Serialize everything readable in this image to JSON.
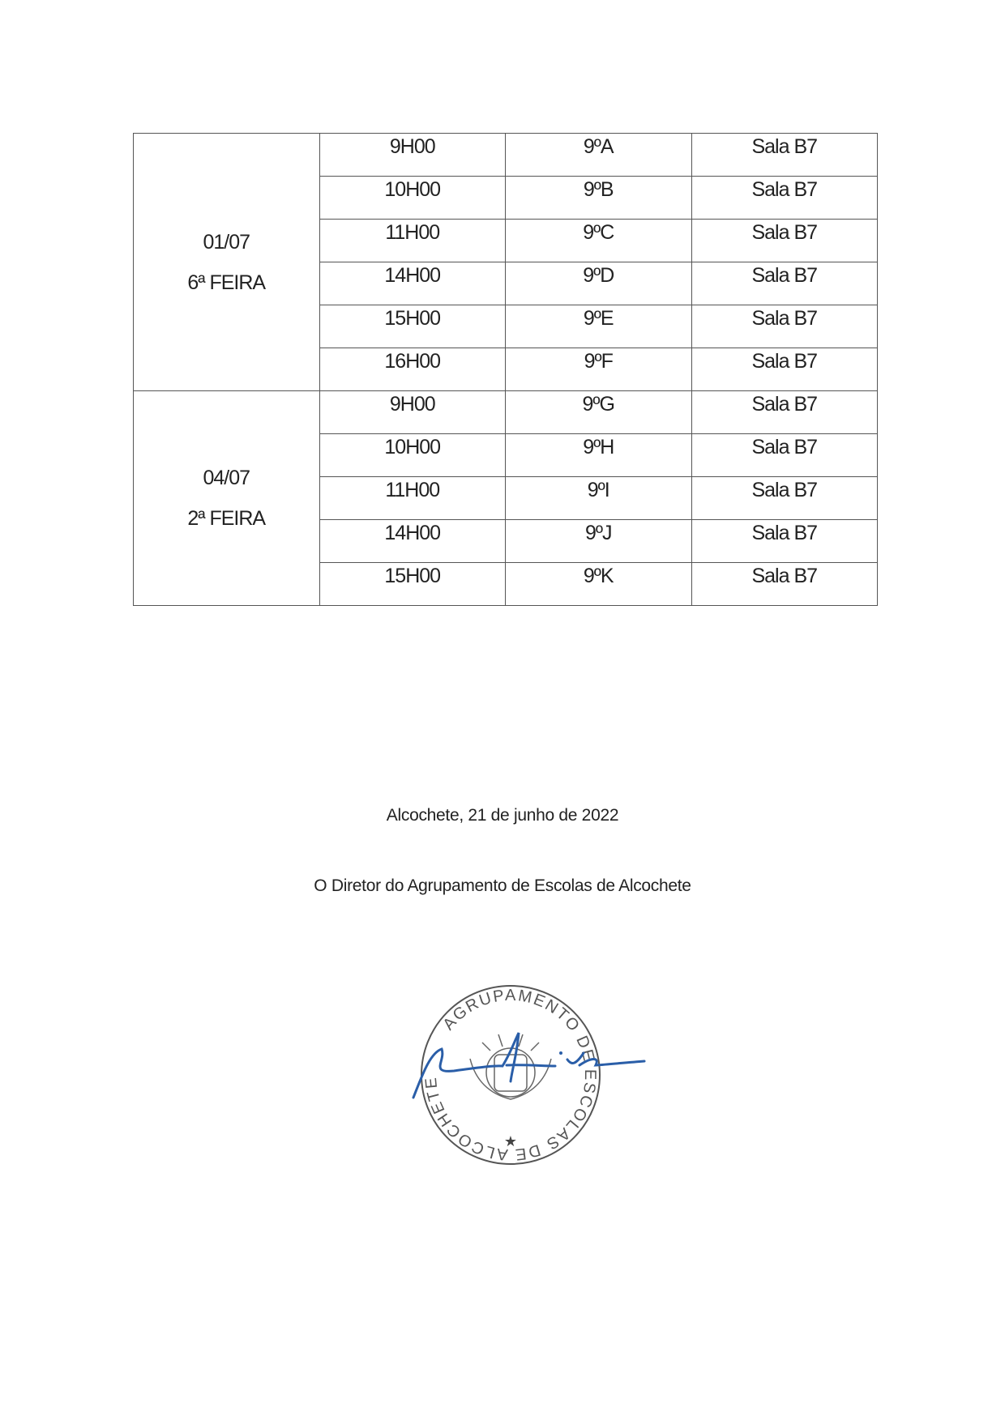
{
  "schedule": {
    "groups": [
      {
        "date": "01/07",
        "weekday": "6ª FEIRA",
        "rows": [
          {
            "time": "9H00",
            "class": "9ºA",
            "room": "Sala B7"
          },
          {
            "time": "10H00",
            "class": "9ºB",
            "room": "Sala B7"
          },
          {
            "time": "11H00",
            "class": "9ºC",
            "room": "Sala B7"
          },
          {
            "time": "14H00",
            "class": "9ºD",
            "room": "Sala B7"
          },
          {
            "time": "15H00",
            "class": "9ºE",
            "room": "Sala B7"
          },
          {
            "time": "16H00",
            "class": "9ºF",
            "room": "Sala B7"
          }
        ]
      },
      {
        "date": "04/07",
        "weekday": "2ª FEIRA",
        "rows": [
          {
            "time": "9H00",
            "class": "9ºG",
            "room": "Sala B7"
          },
          {
            "time": "10H00",
            "class": "9ºH",
            "room": "Sala B7"
          },
          {
            "time": "11H00",
            "class": "9ºI",
            "room": "Sala B7"
          },
          {
            "time": "14H00",
            "class": "9ºJ",
            "room": "Sala B7"
          },
          {
            "time": "15H00",
            "class": "9ºK",
            "room": "Sala B7"
          }
        ]
      }
    ]
  },
  "footer": {
    "place_date": "Alcochete, 21 de junho de 2022",
    "signatory": "O Diretor do Agrupamento de Escolas de Alcochete"
  },
  "stamp": {
    "text_top": "AGRUPAMENTO DE ESCOLAS DE ALCOCHETE",
    "color": "#555555"
  },
  "signature": {
    "color": "#2a5ea8"
  }
}
